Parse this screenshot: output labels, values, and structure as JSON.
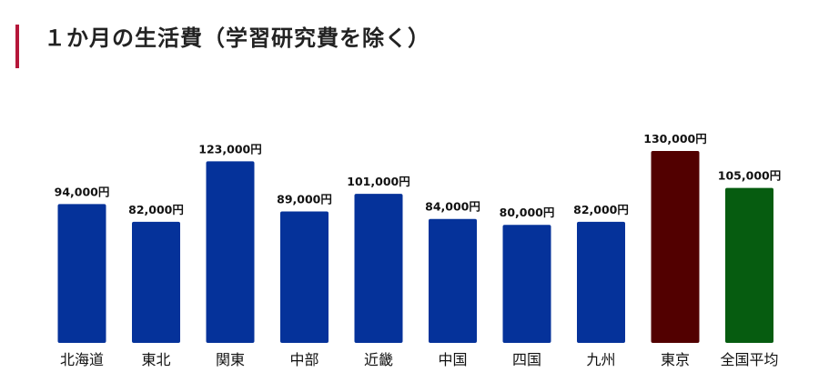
{
  "title": "１か月の生活費（学習研究費を除く）",
  "colors": {
    "accent": "#b5173a",
    "bar_default": "#05329a",
    "bar_tokyo": "#520000",
    "bar_average": "#065c10",
    "label_text": "#111111"
  },
  "chart_data": {
    "type": "bar",
    "title": "１か月の生活費（学習研究費を除く）",
    "categories": [
      "北海道",
      "東北",
      "関東",
      "中部",
      "近畿",
      "中国",
      "四国",
      "九州",
      "東京",
      "全国平均"
    ],
    "values": [
      94000,
      82000,
      123000,
      89000,
      101000,
      84000,
      80000,
      82000,
      130000,
      105000
    ],
    "value_labels": [
      "94,000円",
      "82,000円",
      "123,000円",
      "89,000円",
      "101,000円",
      "84,000円",
      "80,000円",
      "82,000円",
      "130,000円",
      "105,000円"
    ],
    "bar_colors": [
      "#05329a",
      "#05329a",
      "#05329a",
      "#05329a",
      "#05329a",
      "#05329a",
      "#05329a",
      "#05329a",
      "#520000",
      "#065c10"
    ],
    "unit": "円",
    "xlabel": "",
    "ylabel": "",
    "ylim": [
      0,
      130000
    ],
    "grid": false,
    "legend": "none"
  }
}
